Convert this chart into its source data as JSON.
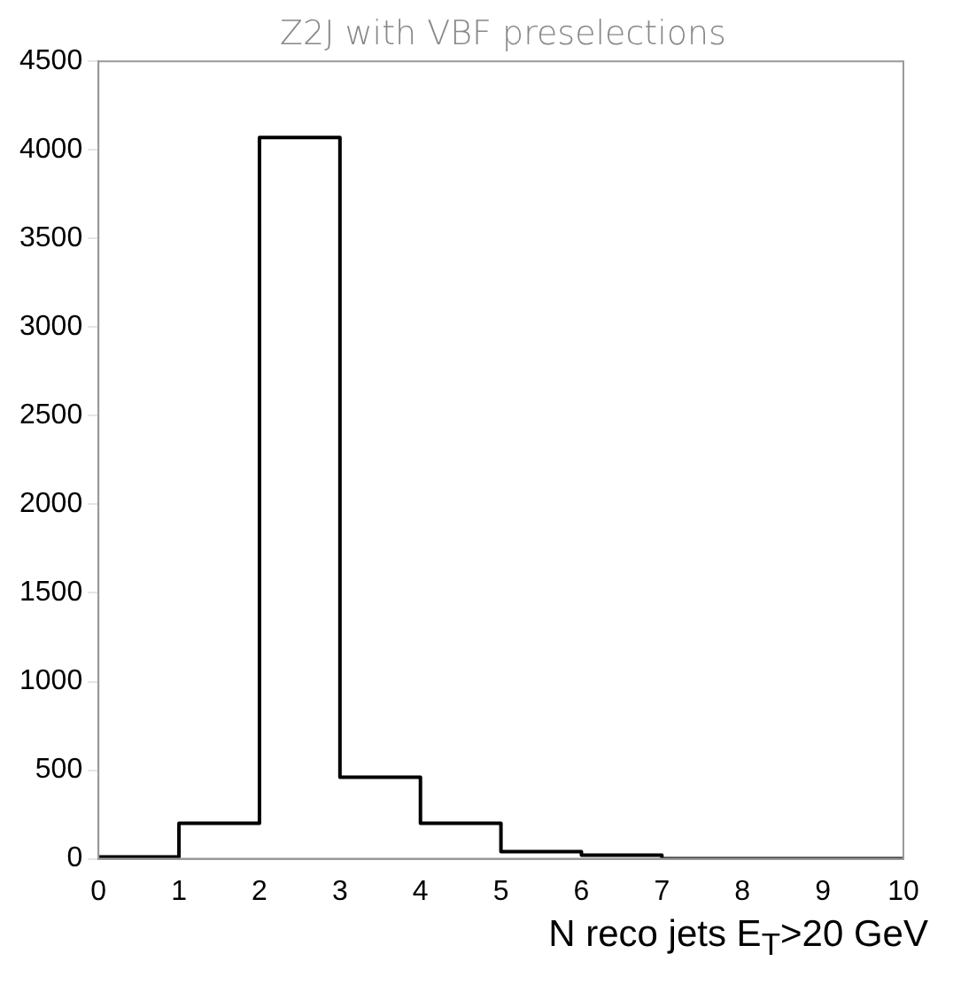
{
  "chart_data": {
    "type": "histogram",
    "title": "Z2J with VBF preselections",
    "xlabel": "N reco jets E$_{T}$>20 GeV",
    "bins": [
      0,
      1,
      2,
      3,
      4,
      5,
      6,
      7,
      8,
      9,
      10
    ],
    "values": [
      10,
      200,
      4070,
      460,
      200,
      40,
      20,
      0,
      0,
      0
    ],
    "color": "#000000",
    "xlim": [
      0,
      10
    ],
    "xticks": [
      0,
      1,
      2,
      3,
      4,
      5,
      6,
      7,
      8,
      9,
      10
    ],
    "ylim": [
      0,
      4500
    ],
    "yticks": [
      0,
      500,
      1000,
      1500,
      2000,
      2500,
      3000,
      3500,
      4000,
      4500
    ],
    "grid": false,
    "legend": false
  }
}
